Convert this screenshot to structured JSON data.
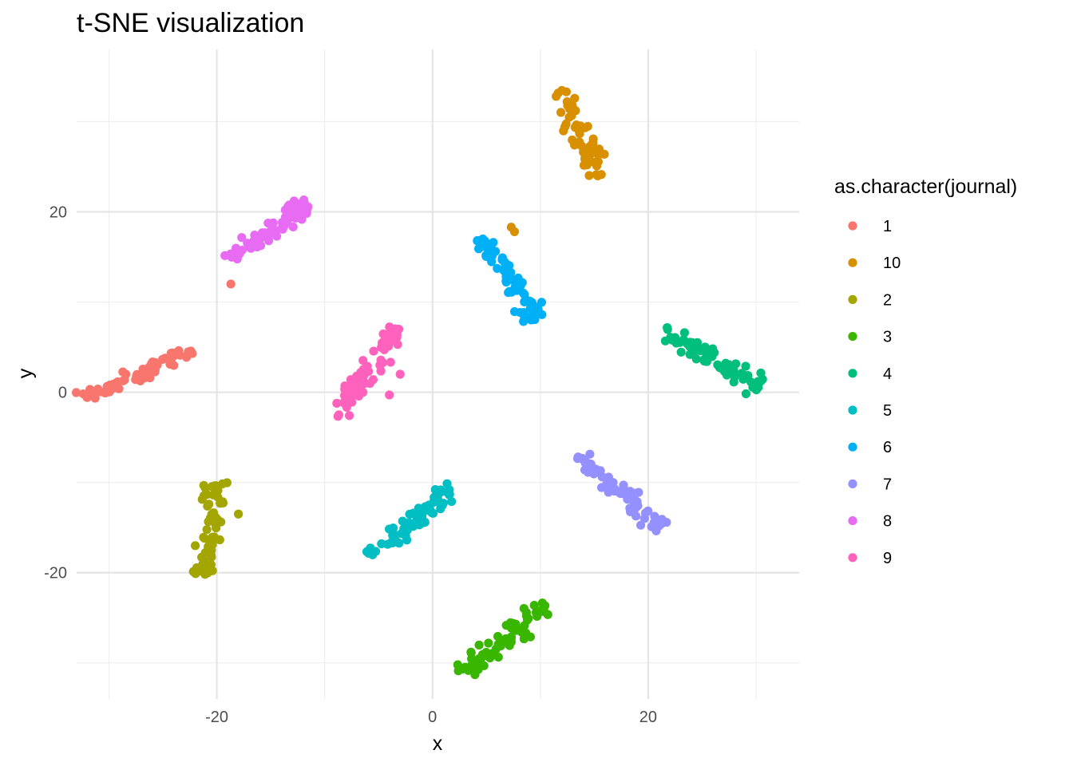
{
  "chart_data": {
    "type": "scatter",
    "title": "t-SNE visualization",
    "xlabel": "x",
    "ylabel": "y",
    "xlim": [
      -33,
      34
    ],
    "ylim": [
      -34,
      38
    ],
    "x_ticks": [
      -20,
      0,
      20
    ],
    "x_tick_labels": [
      "-20",
      "0",
      "20"
    ],
    "y_ticks": [
      -20,
      0,
      20
    ],
    "y_tick_labels": [
      "-20",
      "0",
      "20"
    ],
    "grid": true,
    "legend": {
      "title": "as.character(journal)",
      "position": "right"
    },
    "series": [
      {
        "name": "1",
        "color": "#F8766D",
        "cluster": {
          "from": [
            -32.5,
            -0.8
          ],
          "to": [
            -22.5,
            4.5
          ],
          "spread": 0.8,
          "n": 70,
          "outliers": [
            [
              -18.7,
              12.0
            ]
          ]
        }
      },
      {
        "name": "10",
        "color": "#D89000",
        "cluster": {
          "from": [
            11.8,
            33.5
          ],
          "to": [
            15.5,
            24.0
          ],
          "spread": 0.9,
          "n": 60,
          "outliers": [
            [
              7.3,
              18.3
            ],
            [
              7.6,
              17.8
            ]
          ]
        }
      },
      {
        "name": "2",
        "color": "#A3A500",
        "cluster": {
          "from": [
            -20.0,
            -10.0
          ],
          "to": [
            -21.0,
            -20.5
          ],
          "spread": 0.9,
          "n": 60,
          "outliers": [
            [
              -22.0,
              -17.0
            ],
            [
              -18.0,
              -13.5
            ]
          ]
        }
      },
      {
        "name": "3",
        "color": "#39B600",
        "cluster": {
          "from": [
            3.0,
            -31.0
          ],
          "to": [
            10.5,
            -23.5
          ],
          "spread": 0.8,
          "n": 70,
          "outliers": []
        }
      },
      {
        "name": "4",
        "color": "#00BF7D",
        "cluster": {
          "from": [
            21.5,
            6.8
          ],
          "to": [
            30.5,
            0.5
          ],
          "spread": 0.8,
          "n": 70,
          "outliers": []
        }
      },
      {
        "name": "5",
        "color": "#00BFC4",
        "cluster": {
          "from": [
            -6.0,
            -18.0
          ],
          "to": [
            2.0,
            -10.8
          ],
          "spread": 0.9,
          "n": 70,
          "outliers": []
        }
      },
      {
        "name": "6",
        "color": "#00B0F6",
        "cluster": {
          "from": [
            4.5,
            17.0
          ],
          "to": [
            9.5,
            8.0
          ],
          "spread": 0.8,
          "n": 70,
          "outliers": []
        }
      },
      {
        "name": "7",
        "color": "#9590FF",
        "cluster": {
          "from": [
            13.5,
            -7.0
          ],
          "to": [
            21.5,
            -15.0
          ],
          "spread": 0.8,
          "n": 70,
          "outliers": []
        }
      },
      {
        "name": "8",
        "color": "#E76BF3",
        "cluster": {
          "from": [
            -19.0,
            14.5
          ],
          "to": [
            -11.5,
            21.0
          ],
          "spread": 0.9,
          "n": 70,
          "outliers": []
        }
      },
      {
        "name": "9",
        "color": "#FF62BC",
        "cluster": {
          "from": [
            -9.0,
            -2.5
          ],
          "to": [
            -3.0,
            7.0
          ],
          "spread": 0.9,
          "n": 70,
          "outliers": [
            [
              -3.0,
              2.0
            ],
            [
              -4.0,
              -0.3
            ]
          ]
        }
      }
    ]
  }
}
